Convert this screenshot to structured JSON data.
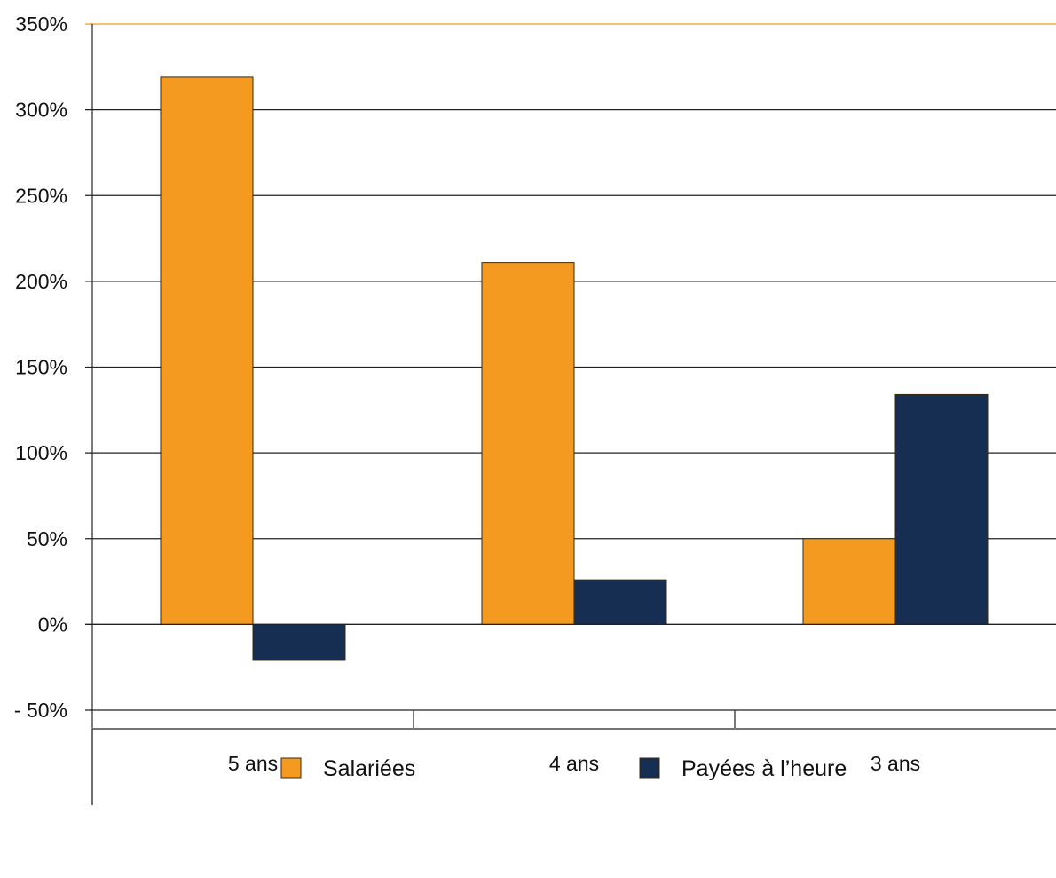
{
  "chart_data": {
    "type": "bar",
    "categories": [
      "5 ans",
      "4 ans",
      "3 ans"
    ],
    "series": [
      {
        "name": "Salariées",
        "values": [
          319,
          211,
          50
        ],
        "color": "#F59A21"
      },
      {
        "name": "Payées à l’heure",
        "values": [
          -21,
          26,
          134
        ],
        "color": "#152E52"
      }
    ],
    "ylim": [
      -50,
      350
    ],
    "ytick_values": [
      -50,
      0,
      50,
      100,
      150,
      200,
      250,
      300,
      350
    ],
    "ytick_labels": [
      "- 50%",
      "0%",
      "50%",
      "100%",
      "150%",
      "200%",
      "250%",
      "300%",
      "350%"
    ],
    "grid": true,
    "top_gridline_color": "#F59A21",
    "gridline_color": "#222222",
    "legend_position": "bottom",
    "title": "",
    "xlabel": "",
    "ylabel": ""
  }
}
